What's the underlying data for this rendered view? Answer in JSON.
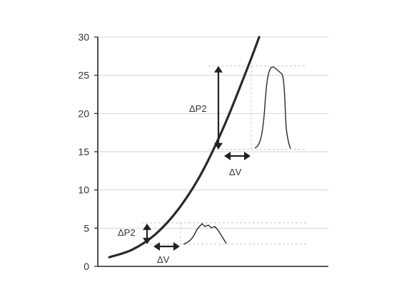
{
  "chart_data": {
    "type": "line",
    "title": "",
    "xlabel": "",
    "ylabel": "",
    "ylim": [
      0,
      30
    ],
    "y_ticks": [
      0,
      5,
      10,
      15,
      20,
      25,
      30
    ],
    "grid": "horizontal",
    "legend": "none",
    "x_tick_labels": "none",
    "colors": {
      "curve": "#2a2a2a",
      "grid": "#d6d6d6",
      "axis": "#222222",
      "pulse": "#2a2a2a",
      "guide": "#c4c4c4",
      "arrow": "#222222"
    },
    "curve": {
      "x": [
        0.05,
        0.15,
        0.25,
        0.35,
        0.45,
        0.55,
        0.65,
        0.7
      ],
      "y": [
        1.2,
        2.2,
        4.2,
        7.5,
        12.2,
        18.5,
        26.0,
        30.0
      ]
    },
    "annotations": [
      {
        "label": "ΔP2",
        "kind": "vertical-arrow",
        "y_from": 2.9,
        "y_to": 5.6
      },
      {
        "label": "ΔV",
        "kind": "horizontal-arrow",
        "y": 2.9
      },
      {
        "label": "ΔP2",
        "kind": "vertical-arrow",
        "y_from": 15.3,
        "y_to": 26.2
      },
      {
        "label": "ΔV",
        "kind": "horizontal-arrow",
        "y": 14.4
      }
    ],
    "pulses": [
      {
        "baseline": 2.9,
        "peak": 5.7
      },
      {
        "baseline": 15.3,
        "peak": 26.2
      }
    ]
  }
}
